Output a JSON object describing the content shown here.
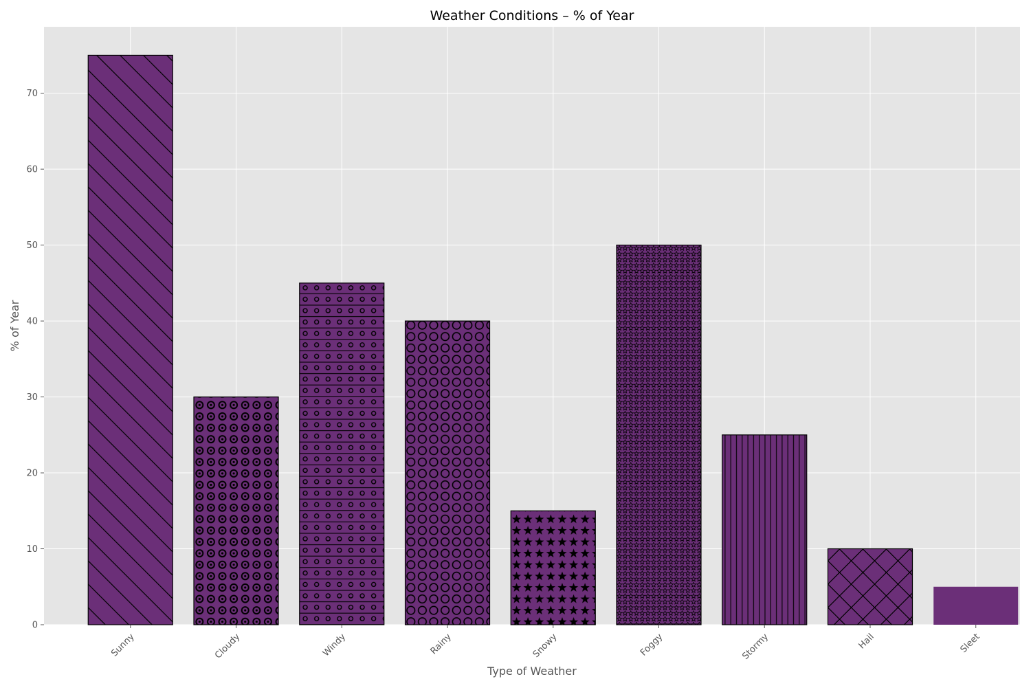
{
  "chart_data": {
    "type": "bar",
    "title": "Weather Conditions – % of Year",
    "xlabel": "Type of Weather",
    "ylabel": "% of Year",
    "categories": [
      "Sunny",
      "Cloudy",
      "Windy",
      "Rainy",
      "Snowy",
      "Foggy",
      "Stormy",
      "Hail",
      "Sleet"
    ],
    "values": [
      75,
      30,
      45,
      40,
      15,
      50,
      25,
      10,
      5
    ],
    "hatches": [
      "diagonal-back",
      "ring-dots",
      "small-circles-lines",
      "large-circles",
      "stars",
      "small-stars",
      "vertical",
      "cross-diagonal",
      "none"
    ],
    "ylim": [
      0,
      78.75
    ],
    "yticks": [
      0,
      10,
      20,
      30,
      40,
      50,
      60,
      70
    ],
    "grid": true,
    "bar_color": "#6b2f78",
    "edge_color": "#000000",
    "background_color": "#e5e5e5",
    "grid_color": "#ffffff",
    "text_color": "#555555",
    "title_color": "#000000"
  }
}
